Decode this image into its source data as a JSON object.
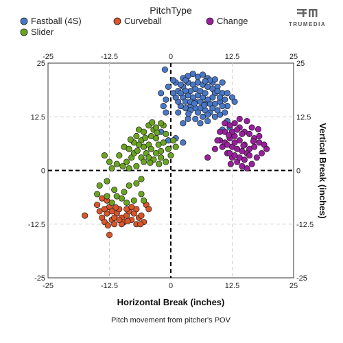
{
  "legend": {
    "title": "PitchType",
    "entries": [
      {
        "name": "Fastball (4S)",
        "color": "#4a78c8"
      },
      {
        "name": "Curveball",
        "color": "#d9552b"
      },
      {
        "name": "Change",
        "color": "#9a1f9e"
      },
      {
        "name": "Slider",
        "color": "#6aa420"
      }
    ]
  },
  "brand": {
    "name": "TRUMEDIA",
    "icon": "trumedia-logo-icon"
  },
  "caption": "Pitch movement from pitcher's POV",
  "chart_data": {
    "type": "scatter",
    "xlabel": "Horizontal Break (inches)",
    "ylabel": "Vertical Break (inches)",
    "xlim": [
      -25,
      25
    ],
    "ylim": [
      -25,
      25
    ],
    "x_ticks": [
      "-25",
      "-12.5",
      "0",
      "12.5",
      "25"
    ],
    "y_ticks": [
      "25",
      "12.5",
      "0",
      "-12.5",
      "-25"
    ],
    "grid": true,
    "reference_lines": [
      0,
      0
    ],
    "legend_placement": "top",
    "series": [
      {
        "name": "Fastball (4S)",
        "color": "#4a78c8",
        "points": [
          [
            -1.2,
            23.5
          ],
          [
            -2.0,
            18.0
          ],
          [
            -0.5,
            19.5
          ],
          [
            1.0,
            20.5
          ],
          [
            2.5,
            21.5
          ],
          [
            3.5,
            22.0
          ],
          [
            4.5,
            22.5
          ],
          [
            5.5,
            21.8
          ],
          [
            6.5,
            22.3
          ],
          [
            7.5,
            21.5
          ],
          [
            8.5,
            20.5
          ],
          [
            9.5,
            19.5
          ],
          [
            10.5,
            18.0
          ],
          [
            11.0,
            16.5
          ],
          [
            11.5,
            15.0
          ],
          [
            11.0,
            13.5
          ],
          [
            10.0,
            13.0
          ],
          [
            9.0,
            12.5
          ],
          [
            8.0,
            13.5
          ],
          [
            7.0,
            14.0
          ],
          [
            6.0,
            14.5
          ],
          [
            5.0,
            14.5
          ],
          [
            4.0,
            15.0
          ],
          [
            3.0,
            14.5
          ],
          [
            2.0,
            15.0
          ],
          [
            1.5,
            16.0
          ],
          [
            1.0,
            17.0
          ],
          [
            0.5,
            18.0
          ],
          [
            1.5,
            18.5
          ],
          [
            2.5,
            19.5
          ],
          [
            3.5,
            20.5
          ],
          [
            4.5,
            20.0
          ],
          [
            5.5,
            20.5
          ],
          [
            6.5,
            20.0
          ],
          [
            7.5,
            19.5
          ],
          [
            8.5,
            19.0
          ],
          [
            9.0,
            18.0
          ],
          [
            8.5,
            17.0
          ],
          [
            7.5,
            16.5
          ],
          [
            6.5,
            17.0
          ],
          [
            5.5,
            17.5
          ],
          [
            4.5,
            17.0
          ],
          [
            3.5,
            17.5
          ],
          [
            2.5,
            17.0
          ],
          [
            3.0,
            16.0
          ],
          [
            4.0,
            16.0
          ],
          [
            5.0,
            16.0
          ],
          [
            6.0,
            16.0
          ],
          [
            7.0,
            15.5
          ],
          [
            8.0,
            15.5
          ],
          [
            9.0,
            15.5
          ],
          [
            10.0,
            16.0
          ],
          [
            10.0,
            17.0
          ],
          [
            9.5,
            18.5
          ],
          [
            7.0,
            18.0
          ],
          [
            6.0,
            18.5
          ],
          [
            5.0,
            19.0
          ],
          [
            4.0,
            18.5
          ],
          [
            3.0,
            18.5
          ],
          [
            2.0,
            18.0
          ],
          [
            4.0,
            14.0
          ],
          [
            5.5,
            13.5
          ],
          [
            7.5,
            13.0
          ],
          [
            9.5,
            14.0
          ],
          [
            -1.5,
            15.0
          ],
          [
            -1.0,
            13.5
          ],
          [
            1.5,
            13.5
          ],
          [
            -2.0,
            9.0
          ],
          [
            2.5,
            11.0
          ],
          [
            3.5,
            12.0
          ],
          [
            11.5,
            11.5
          ],
          [
            12.0,
            10.0
          ],
          [
            10.5,
            9.5
          ],
          [
            7.5,
            11.5
          ],
          [
            6.5,
            12.5
          ],
          [
            1.0,
            7.5
          ],
          [
            -0.5,
            7.0
          ],
          [
            2.5,
            6.5
          ],
          [
            6.0,
            11.0
          ],
          [
            5.0,
            12.0
          ],
          [
            -1.0,
            16.5
          ],
          [
            12.5,
            17.0
          ],
          [
            11.5,
            18.0
          ],
          [
            13.0,
            16.0
          ],
          [
            10.5,
            20.5
          ],
          [
            8.0,
            21.0
          ],
          [
            3.0,
            21.0
          ],
          [
            0.5,
            21.0
          ],
          [
            2.0,
            20.0
          ],
          [
            7.0,
            20.8
          ],
          [
            9.0,
            21.2
          ],
          [
            10.5,
            15.0
          ],
          [
            8.5,
            14.5
          ],
          [
            6.8,
            15.2
          ],
          [
            4.8,
            15.6
          ],
          [
            3.6,
            13.2
          ]
        ]
      },
      {
        "name": "Curveball",
        "color": "#d9552b",
        "points": [
          [
            -17.5,
            -10.5
          ],
          [
            -15.0,
            -8.0
          ],
          [
            -14.5,
            -9.5
          ],
          [
            -14.0,
            -11.0
          ],
          [
            -13.5,
            -12.0
          ],
          [
            -13.0,
            -10.0
          ],
          [
            -12.5,
            -8.5
          ],
          [
            -12.0,
            -11.5
          ],
          [
            -11.5,
            -12.5
          ],
          [
            -11.0,
            -10.0
          ],
          [
            -10.5,
            -9.0
          ],
          [
            -10.0,
            -11.0
          ],
          [
            -9.5,
            -12.0
          ],
          [
            -9.0,
            -10.5
          ],
          [
            -8.5,
            -9.5
          ],
          [
            -8.0,
            -11.5
          ],
          [
            -7.5,
            -10.0
          ],
          [
            -7.0,
            -9.0
          ],
          [
            -6.5,
            -11.0
          ],
          [
            -6.0,
            -10.5
          ],
          [
            -5.5,
            -12.0
          ],
          [
            -5.0,
            -8.0
          ],
          [
            -12.5,
            -15.0
          ],
          [
            -14.0,
            -6.5
          ],
          [
            -13.0,
            -7.0
          ],
          [
            -10.0,
            -12.5
          ],
          [
            -11.5,
            -11.0
          ],
          [
            -9.0,
            -9.0
          ],
          [
            -8.0,
            -8.5
          ],
          [
            -7.0,
            -12.5
          ],
          [
            -4.5,
            -9.0
          ],
          [
            -12.0,
            -9.5
          ],
          [
            -13.5,
            -9.0
          ],
          [
            -10.5,
            -11.5
          ],
          [
            -8.8,
            -11.8
          ],
          [
            -11.2,
            -8.6
          ],
          [
            -12.8,
            -12.8
          ],
          [
            -6.2,
            -12.5
          ]
        ]
      },
      {
        "name": "Slider",
        "color": "#6aa420",
        "points": [
          [
            -9.5,
            5.5
          ],
          [
            -10.5,
            3.5
          ],
          [
            -11.0,
            1.5
          ],
          [
            -9.0,
            2.0
          ],
          [
            -8.0,
            3.0
          ],
          [
            -8.5,
            5.0
          ],
          [
            -7.5,
            6.5
          ],
          [
            -7.0,
            8.0
          ],
          [
            -6.5,
            9.5
          ],
          [
            -6.0,
            7.0
          ],
          [
            -5.5,
            5.5
          ],
          [
            -5.0,
            4.0
          ],
          [
            -4.5,
            6.0
          ],
          [
            -4.0,
            8.0
          ],
          [
            -3.5,
            9.5
          ],
          [
            -3.0,
            7.5
          ],
          [
            -2.5,
            6.0
          ],
          [
            -2.0,
            4.5
          ],
          [
            -1.5,
            6.5
          ],
          [
            -1.0,
            8.5
          ],
          [
            -1.5,
            10.5
          ],
          [
            -2.0,
            11.0
          ],
          [
            -3.0,
            10.0
          ],
          [
            -4.5,
            10.5
          ],
          [
            -5.5,
            9.0
          ],
          [
            -6.5,
            6.0
          ],
          [
            -7.5,
            4.0
          ],
          [
            -6.0,
            3.0
          ],
          [
            -4.5,
            3.0
          ],
          [
            -3.0,
            4.0
          ],
          [
            -2.0,
            3.0
          ],
          [
            -0.5,
            5.0
          ],
          [
            0.5,
            7.0
          ],
          [
            1.0,
            5.5
          ],
          [
            -1.0,
            2.0
          ],
          [
            -3.5,
            2.5
          ],
          [
            -5.5,
            2.0
          ],
          [
            -7.0,
            1.0
          ],
          [
            -8.5,
            0.5
          ],
          [
            -13.5,
            3.5
          ],
          [
            -12.0,
            0.5
          ],
          [
            -13.0,
            -2.5
          ],
          [
            -14.5,
            -3.5
          ],
          [
            -15.0,
            -5.5
          ],
          [
            -13.0,
            -6.0
          ],
          [
            -11.5,
            -4.5
          ],
          [
            -11.0,
            -6.0
          ],
          [
            -9.5,
            -5.0
          ],
          [
            -8.5,
            -3.5
          ],
          [
            -7.0,
            -3.0
          ],
          [
            -6.0,
            -5.5
          ],
          [
            -5.5,
            -7.0
          ],
          [
            -7.5,
            -7.0
          ],
          [
            -9.0,
            -7.5
          ],
          [
            -10.0,
            -6.5
          ],
          [
            -12.0,
            -7.5
          ],
          [
            -6.0,
            -2.0
          ],
          [
            -4.0,
            5.0
          ],
          [
            -2.8,
            8.8
          ],
          [
            -5.2,
            7.6
          ],
          [
            -8.2,
            7.2
          ],
          [
            -3.8,
            11.2
          ],
          [
            -6.8,
            4.6
          ],
          [
            -4.2,
            1.8
          ],
          [
            -2.4,
            1.5
          ],
          [
            -9.8,
            1.0
          ],
          [
            -12.5,
            2.0
          ],
          [
            0.0,
            3.5
          ]
        ]
      },
      {
        "name": "Change",
        "color": "#9a1f9e",
        "points": [
          [
            7.5,
            3.0
          ],
          [
            9.0,
            5.0
          ],
          [
            10.0,
            7.0
          ],
          [
            11.0,
            9.0
          ],
          [
            12.0,
            10.5
          ],
          [
            13.0,
            11.0
          ],
          [
            14.0,
            10.0
          ],
          [
            15.0,
            9.0
          ],
          [
            16.0,
            8.5
          ],
          [
            17.0,
            7.5
          ],
          [
            18.0,
            6.5
          ],
          [
            19.0,
            6.0
          ],
          [
            19.5,
            5.0
          ],
          [
            18.5,
            4.0
          ],
          [
            17.5,
            3.0
          ],
          [
            16.5,
            1.5
          ],
          [
            15.5,
            0.5
          ],
          [
            14.5,
            1.0
          ],
          [
            13.5,
            2.0
          ],
          [
            12.5,
            3.0
          ],
          [
            11.5,
            4.0
          ],
          [
            10.5,
            5.5
          ],
          [
            11.0,
            6.5
          ],
          [
            12.0,
            7.5
          ],
          [
            13.0,
            8.0
          ],
          [
            14.0,
            7.0
          ],
          [
            15.0,
            6.0
          ],
          [
            16.0,
            5.0
          ],
          [
            15.5,
            4.0
          ],
          [
            14.5,
            4.5
          ],
          [
            13.5,
            5.0
          ],
          [
            12.5,
            5.5
          ],
          [
            11.5,
            6.0
          ],
          [
            12.0,
            4.0
          ],
          [
            13.0,
            3.5
          ],
          [
            14.0,
            3.0
          ],
          [
            15.0,
            2.5
          ],
          [
            16.0,
            3.5
          ],
          [
            17.0,
            5.5
          ],
          [
            18.0,
            8.0
          ],
          [
            16.5,
            10.0
          ],
          [
            15.5,
            11.5
          ],
          [
            14.0,
            12.0
          ],
          [
            13.5,
            9.5
          ],
          [
            12.5,
            9.0
          ],
          [
            11.0,
            11.0
          ],
          [
            10.0,
            9.0
          ],
          [
            9.5,
            7.0
          ],
          [
            14.5,
            8.5
          ],
          [
            13.0,
            6.5
          ],
          [
            16.8,
            6.8
          ],
          [
            12.2,
            1.5
          ],
          [
            14.8,
            5.8
          ],
          [
            17.8,
            9.6
          ],
          [
            11.8,
            8.2
          ]
        ]
      }
    ]
  }
}
